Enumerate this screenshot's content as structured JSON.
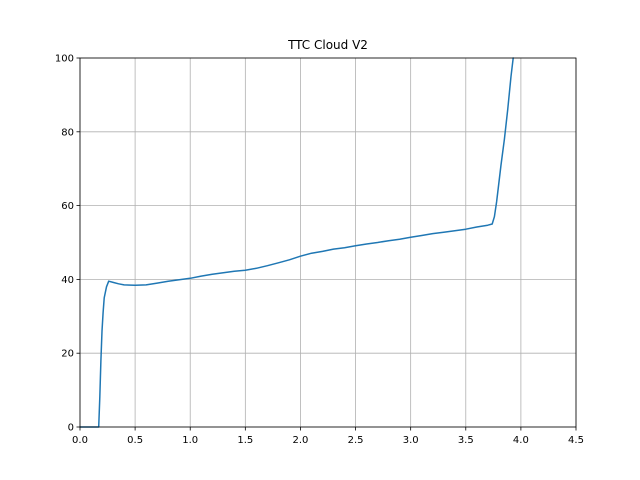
{
  "chart_data": {
    "type": "line",
    "title": "TTC Cloud V2",
    "xlabel": "",
    "ylabel": "",
    "xlim": [
      0.0,
      4.5
    ],
    "ylim": [
      0,
      100
    ],
    "x_ticks": [
      "0.0",
      "0.5",
      "1.0",
      "1.5",
      "2.0",
      "2.5",
      "3.0",
      "3.5",
      "4.0",
      "4.5"
    ],
    "y_ticks": [
      "0",
      "20",
      "40",
      "60",
      "80",
      "100"
    ],
    "grid": true,
    "legend": "none",
    "series": [
      {
        "color": "#1f77b4",
        "points": [
          [
            0.0,
            0
          ],
          [
            0.17,
            0
          ],
          [
            0.18,
            8
          ],
          [
            0.19,
            18
          ],
          [
            0.2,
            26
          ],
          [
            0.21,
            31
          ],
          [
            0.22,
            35
          ],
          [
            0.24,
            38
          ],
          [
            0.26,
            39.5
          ],
          [
            0.3,
            39.2
          ],
          [
            0.35,
            38.8
          ],
          [
            0.4,
            38.5
          ],
          [
            0.5,
            38.4
          ],
          [
            0.6,
            38.5
          ],
          [
            0.7,
            39.0
          ],
          [
            0.8,
            39.5
          ],
          [
            0.9,
            39.9
          ],
          [
            1.0,
            40.3
          ],
          [
            1.1,
            40.9
          ],
          [
            1.2,
            41.4
          ],
          [
            1.3,
            41.8
          ],
          [
            1.4,
            42.2
          ],
          [
            1.5,
            42.5
          ],
          [
            1.6,
            43.0
          ],
          [
            1.7,
            43.7
          ],
          [
            1.8,
            44.5
          ],
          [
            1.9,
            45.3
          ],
          [
            2.0,
            46.3
          ],
          [
            2.1,
            47.1
          ],
          [
            2.2,
            47.6
          ],
          [
            2.3,
            48.2
          ],
          [
            2.4,
            48.6
          ],
          [
            2.5,
            49.1
          ],
          [
            2.6,
            49.6
          ],
          [
            2.7,
            50.0
          ],
          [
            2.8,
            50.5
          ],
          [
            2.9,
            50.9
          ],
          [
            3.0,
            51.4
          ],
          [
            3.1,
            51.9
          ],
          [
            3.2,
            52.4
          ],
          [
            3.3,
            52.8
          ],
          [
            3.4,
            53.2
          ],
          [
            3.5,
            53.6
          ],
          [
            3.6,
            54.2
          ],
          [
            3.7,
            54.7
          ],
          [
            3.74,
            55.0
          ],
          [
            3.76,
            57
          ],
          [
            3.78,
            61
          ],
          [
            3.8,
            66
          ],
          [
            3.82,
            71
          ],
          [
            3.85,
            78
          ],
          [
            3.88,
            86
          ],
          [
            3.91,
            95
          ],
          [
            3.93,
            100
          ]
        ]
      }
    ]
  }
}
